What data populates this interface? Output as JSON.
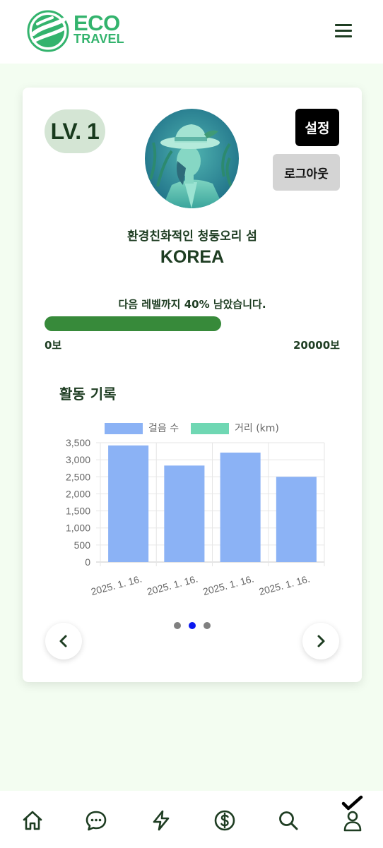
{
  "header": {
    "logo_top": "ECO",
    "logo_bottom": "TRAVEL",
    "logo_icon": "globe-logo-icon",
    "menu_icon": "hamburger-menu-icon",
    "brand_color": "#33b36d"
  },
  "profile": {
    "level": "LV. 1",
    "settings_label": "설정",
    "logout_label": "로그아웃",
    "title": "환경친화적인 청둥오리 섬",
    "country": "KOREA"
  },
  "progress": {
    "text": "다음 레벨까지 40% 남았습니다.",
    "fraction": 0.6,
    "min_label": "0보",
    "max_label": "20000보",
    "fill_color": "#378a3a"
  },
  "activity": {
    "title": "활동 기록"
  },
  "chart_data": {
    "type": "bar",
    "categories": [
      "2025. 1. 16.",
      "2025. 1. 16.",
      "2025. 1. 16.",
      "2025. 1. 16."
    ],
    "series": [
      {
        "name": "걸음 수",
        "values": [
          3420,
          2830,
          3210,
          2500
        ],
        "color": "#8bb2f5"
      },
      {
        "name": "거리 (km)",
        "values": [
          0,
          0,
          0,
          0
        ],
        "color": "#6fd7b3"
      }
    ],
    "yticks": [
      "3,500",
      "3,000",
      "2,500",
      "2,000",
      "1,500",
      "1,000",
      "500",
      "0"
    ],
    "ylim": [
      0,
      3500
    ],
    "legend": "top-center",
    "grid": true
  },
  "carousel": {
    "page_count": 3,
    "active_index": 1,
    "prev_icon": "chevron-left-icon",
    "next_icon": "chevron-right-icon"
  },
  "bottom_nav": {
    "items": [
      "home-icon",
      "chat-icon",
      "lightning-icon",
      "dollar-icon",
      "search-icon",
      "profile-check-icon"
    ]
  }
}
